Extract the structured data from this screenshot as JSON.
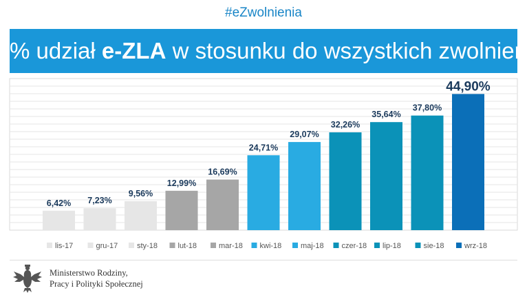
{
  "header": {
    "hashtag": "#eZwolnienia",
    "title_prefix": "% udział ",
    "title_bold": "e-ZLA",
    "title_suffix": " w stosunku do wszystkich zwolnień"
  },
  "chart_data": {
    "type": "bar",
    "title": "% udział e-ZLA w stosunku do wszystkich zwolnień",
    "xlabel": "",
    "ylabel": "",
    "ylim": [
      0,
      50
    ],
    "grid": true,
    "legend_position": "bottom",
    "categories": [
      "lis-17",
      "gru-17",
      "sty-18",
      "lut-18",
      "mar-18",
      "kwi-18",
      "maj-18",
      "czer-18",
      "lip-18",
      "sie-18",
      "wrz-18"
    ],
    "values": [
      6.42,
      7.23,
      9.56,
      12.99,
      16.69,
      24.71,
      29.07,
      32.26,
      35.64,
      37.8,
      44.9
    ],
    "labels": [
      "6,42%",
      "7,23%",
      "9,56%",
      "12,99%",
      "16,69%",
      "24,71%",
      "29,07%",
      "32,26%",
      "35,64%",
      "37,80%",
      "44,90%"
    ],
    "colors": [
      "#e6e6e6",
      "#e6e6e6",
      "#e6e6e6",
      "#a6a6a6",
      "#a6a6a6",
      "#29abe2",
      "#29abe2",
      "#0b92b8",
      "#0b92b8",
      "#0b92b8",
      "#0b6fb8"
    ],
    "label_color": "#1b3a5c"
  },
  "footer": {
    "ministry_line1": "Ministerstwo Rodziny,",
    "ministry_line2": "Pracy i Polityki Społecznej"
  }
}
